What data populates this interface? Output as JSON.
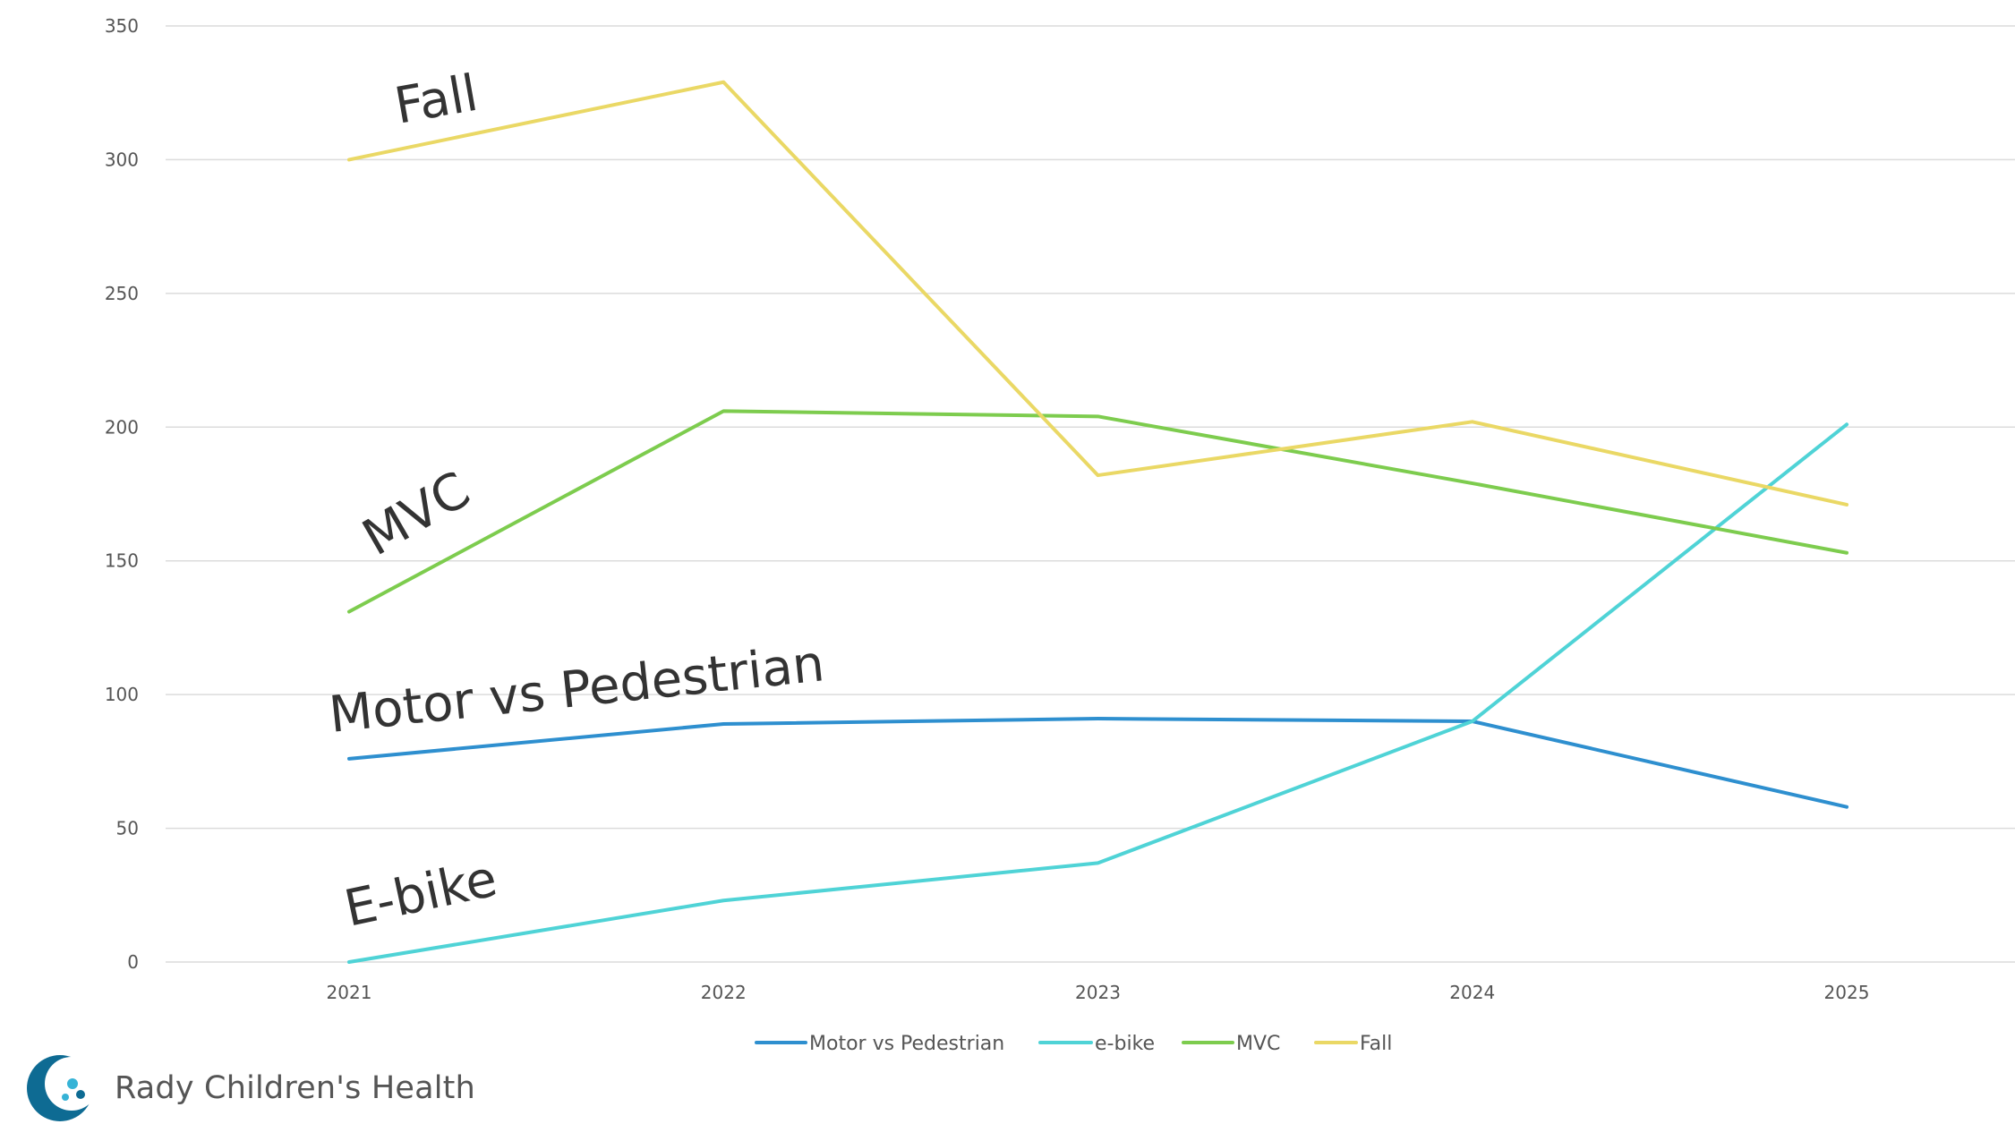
{
  "chart_data": {
    "type": "line",
    "categories": [
      "2021",
      "2022",
      "2023",
      "2024",
      "2025"
    ],
    "ylim": [
      0,
      350
    ],
    "yticks": [
      0,
      50,
      100,
      150,
      200,
      250,
      300,
      350
    ],
    "grid": true,
    "legend_position": "bottom",
    "series": [
      {
        "name": "Motor vs Pedestrian",
        "color": "#2e8fcf",
        "values": [
          76,
          89,
          91,
          90,
          58
        ]
      },
      {
        "name": "e-bike",
        "color": "#4fd3d6",
        "values": [
          0,
          23,
          37,
          90,
          201
        ]
      },
      {
        "name": "MVC",
        "color": "#7dcc4e",
        "values": [
          131,
          206,
          204,
          179,
          153
        ]
      },
      {
        "name": "Fall",
        "color": "#ead865",
        "values": [
          300,
          329,
          182,
          202,
          171
        ]
      }
    ],
    "annotations": [
      {
        "text": "Fall",
        "series": "Fall"
      },
      {
        "text": "MVC",
        "series": "MVC"
      },
      {
        "text": "Motor vs Pedestrian",
        "series": "Motor vs Pedestrian"
      },
      {
        "text": "E-bike",
        "series": "e-bike"
      }
    ]
  },
  "logo": {
    "text": "Rady Children's Health",
    "colors": [
      "#0e6b93",
      "#36b3d6"
    ]
  }
}
